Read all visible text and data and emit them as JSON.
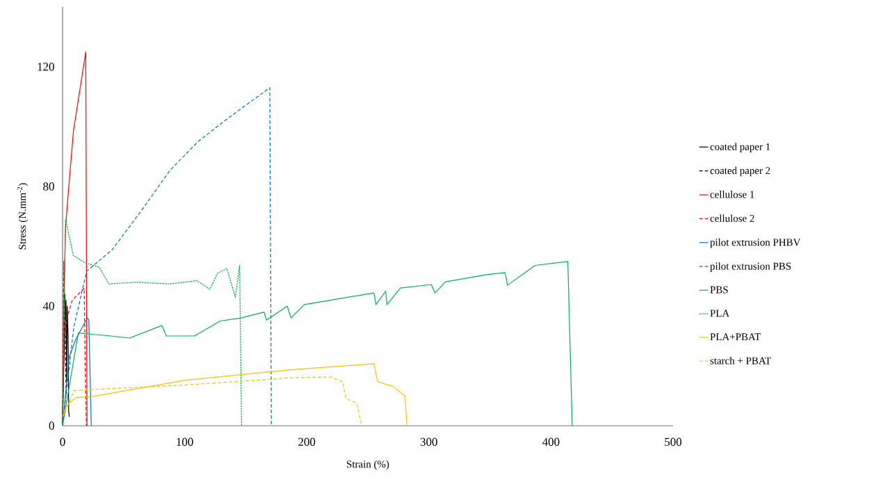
{
  "chart_data": {
    "type": "line",
    "xlabel": "Strain (%)",
    "ylabel": "Stress (N.mm$^{-2}$)",
    "xlim": [
      0,
      500
    ],
    "ylim": [
      0,
      140
    ],
    "xticks": [
      0,
      100,
      200,
      300,
      400,
      500
    ],
    "yticks": [
      0,
      40,
      80,
      120
    ],
    "grid": false,
    "legend": "right",
    "series": [
      {
        "name": "coated paper 1",
        "color": "#000000",
        "line_style": "solid",
        "x": [
          0,
          1,
          2,
          2.8,
          3.3,
          3.8,
          4.5,
          5,
          5.5
        ],
        "values": [
          0,
          20,
          35,
          42,
          15,
          40,
          30,
          5,
          3
        ]
      },
      {
        "name": "coated paper 2",
        "color": "#000000",
        "line_style": "dashed",
        "x": [
          0,
          1,
          2,
          2.5,
          3
        ],
        "values": [
          0,
          25,
          44,
          20,
          10
        ]
      },
      {
        "name": "cellulose 1",
        "color": "#ff0000",
        "line_style": "solid",
        "x": [
          0,
          1,
          2.4,
          4.3,
          9,
          11,
          19,
          20
        ],
        "values": [
          0,
          40,
          66,
          76,
          99,
          104,
          125,
          0
        ]
      },
      {
        "name": "cellulose 2",
        "color": "#ff0000",
        "line_style": "dashed",
        "x": [
          0,
          0.5,
          1,
          2,
          4.3,
          8,
          17.7,
          18.5,
          19.5
        ],
        "values": [
          0,
          30,
          55,
          30,
          37,
          42,
          46,
          20,
          0
        ]
      },
      {
        "name": "pilot extrusion PHBV",
        "color": "#0070c0",
        "line_style": "solid",
        "x": [
          0,
          5.4,
          11,
          20.2,
          21.5,
          23.5
        ],
        "values": [
          0,
          23,
          29,
          36,
          35.3,
          0
        ]
      },
      {
        "name": "pilot extrusion PBS",
        "color": "#0070c0",
        "line_style": "dashed",
        "x": [
          0,
          9.2,
          19.7,
          41,
          64.7,
          88,
          111,
          134.5,
          169.7,
          171
        ],
        "values": [
          0,
          33,
          51.6,
          59,
          72,
          85.4,
          95,
          102.5,
          113,
          0
        ]
      },
      {
        "name": "PBS",
        "color": "#00b050",
        "line_style": "solid",
        "x": [
          0,
          12.9,
          20.6,
          40,
          54.8,
          81.4,
          85,
          108,
          129,
          146,
          165,
          167,
          184,
          187,
          198,
          255,
          256.7,
          264.6,
          265.7,
          276.6,
          302,
          305,
          313.6,
          347,
          362.5,
          364.4,
          387,
          413.8,
          417.4
        ],
        "values": [
          0,
          31,
          30.7,
          30,
          29.3,
          33.5,
          30,
          30,
          35,
          36,
          38,
          35.3,
          40,
          36,
          40.5,
          44.4,
          40.5,
          45,
          40.5,
          46,
          47.2,
          44.4,
          48.1,
          50.5,
          51.2,
          47,
          53.6,
          54.9,
          0
        ]
      },
      {
        "name": "PLA",
        "color": "#00b050",
        "line_style": "dotted",
        "x": [
          0,
          2.4,
          8.8,
          18,
          30,
          38,
          60,
          88,
          110,
          120.5,
          127,
          134.5,
          141.5,
          145,
          146.6
        ],
        "values": [
          0,
          69,
          57,
          54.5,
          53,
          47.4,
          48,
          47.4,
          48.5,
          45.6,
          51,
          52.6,
          43,
          53.6,
          0
        ]
      },
      {
        "name": "PLA+PBAT",
        "color": "#ffc000",
        "line_style": "solid",
        "x": [
          0,
          3.5,
          11,
          24.4,
          100,
          186,
          255,
          258,
          270.7,
          280.5,
          282
        ],
        "values": [
          3,
          7,
          9.4,
          9.8,
          15.2,
          18.7,
          20.7,
          14.7,
          13.1,
          9.9,
          0
        ]
      },
      {
        "name": "starch + PBAT",
        "color": "#ffc000",
        "line_style": "dashed",
        "x": [
          0,
          3.5,
          9.2,
          24.3,
          100,
          186,
          219.6,
          229.4,
          232,
          241,
          245
        ],
        "values": [
          3,
          5.9,
          11.7,
          12.1,
          13.6,
          16,
          16.3,
          14.7,
          9.1,
          7.5,
          0
        ]
      }
    ]
  }
}
